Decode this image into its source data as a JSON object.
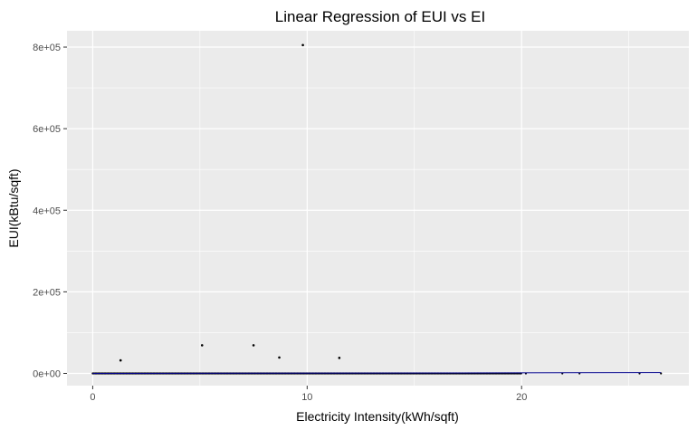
{
  "chart_data": {
    "type": "scatter",
    "title": "Linear Regression of EUI vs EI",
    "xlabel": "Electricity Intensity(kWh/sqft)",
    "ylabel": "EUI(kBtu/sqft)",
    "xlim": [
      -1.2,
      27.8
    ],
    "ylim": [
      -30000,
      840000
    ],
    "x_ticks": [
      0,
      10,
      20
    ],
    "x_tick_labels": [
      "0",
      "10",
      "20"
    ],
    "y_ticks": [
      0,
      200000,
      400000,
      600000,
      800000
    ],
    "y_tick_labels": [
      "0e+00",
      "2e+05",
      "4e+05",
      "6e+05",
      "8e+05"
    ],
    "grid": true,
    "background": "#ebebeb",
    "gridline_color": "#ffffff",
    "point_color": "#000000",
    "fit_line_color": "#00008b",
    "outliers": [
      {
        "x": 1.3,
        "y": 32000
      },
      {
        "x": 5.1,
        "y": 69000
      },
      {
        "x": 7.5,
        "y": 69000
      },
      {
        "x": 8.7,
        "y": 39000
      },
      {
        "x": 9.8,
        "y": 805000
      },
      {
        "x": 11.5,
        "y": 38000
      }
    ],
    "baseline_points": {
      "y": 0,
      "x_min": 0,
      "x_max": 20,
      "step": 0.06,
      "extra_x": [
        20.2,
        21.9,
        22.7,
        25.5,
        26.5
      ]
    },
    "fit_line": {
      "x": [
        0,
        26.5
      ],
      "y": [
        0,
        1800
      ]
    }
  }
}
